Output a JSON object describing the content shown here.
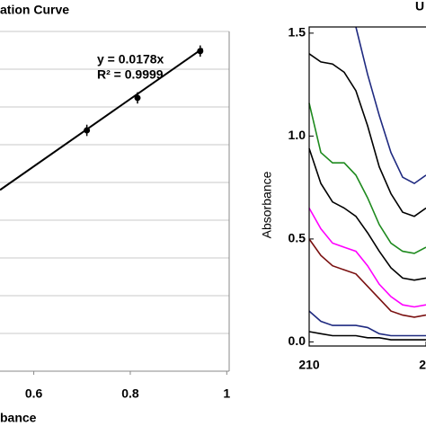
{
  "chart_data": [
    {
      "type": "scatter",
      "title": "ation Curve",
      "x_label": "bance",
      "x": [
        0.71,
        0.815,
        0.945
      ],
      "values": [
        6.38,
        7.24,
        8.48
      ],
      "errors": [
        0.15,
        0.15,
        0.15
      ],
      "trendline": {
        "x": [
          0.53,
          0.95
        ],
        "values": [
          4.8,
          8.55
        ]
      },
      "annotations": [
        "y = 0.0178x",
        "R² = 0.9999"
      ],
      "xlim": [
        0.53,
        1.005
      ],
      "xticks": [
        0.6,
        0.8,
        1
      ],
      "ylim": [
        0,
        9
      ],
      "ygrid": [
        1,
        2,
        3,
        4,
        5,
        6,
        7,
        8,
        9
      ],
      "color": "#000000",
      "grid": true
    },
    {
      "type": "line",
      "title": "U",
      "y_label": "Absorbance",
      "x": [
        210,
        211,
        212,
        213,
        214,
        215,
        216,
        217,
        218,
        219,
        220
      ],
      "xlim": [
        210,
        220
      ],
      "xticks": [
        210,
        {
          "value": 220,
          "label": "2"
        }
      ],
      "ylim": [
        -0.02,
        1.53
      ],
      "yticks": [
        {
          "value": 0,
          "label": "0.0"
        },
        {
          "value": 0.5,
          "label": "0.5"
        },
        {
          "value": 1,
          "label": "1.0"
        },
        {
          "value": 1.5,
          "label": "1.5"
        }
      ],
      "series": [
        {
          "color": "#1f2a80",
          "values": [
            null,
            null,
            null,
            null,
            1.53,
            1.3,
            1.1,
            0.92,
            0.8,
            0.77,
            0.81
          ]
        },
        {
          "color": "#000000",
          "values": [
            1.4,
            1.36,
            1.35,
            1.31,
            1.22,
            1.05,
            0.85,
            0.72,
            0.63,
            0.61,
            0.65
          ]
        },
        {
          "color": "#1e8a1e",
          "values": [
            1.16,
            0.92,
            0.87,
            0.87,
            0.81,
            0.7,
            0.57,
            0.48,
            0.44,
            0.43,
            0.46
          ]
        },
        {
          "color": "#000000",
          "values": [
            0.94,
            0.77,
            0.68,
            0.65,
            0.61,
            0.53,
            0.44,
            0.36,
            0.31,
            0.3,
            0.31
          ]
        },
        {
          "color": "#ff00ff",
          "values": [
            0.65,
            0.55,
            0.48,
            0.46,
            0.44,
            0.37,
            0.28,
            0.22,
            0.18,
            0.17,
            0.18
          ]
        },
        {
          "color": "#7a1010",
          "values": [
            0.5,
            0.42,
            0.37,
            0.35,
            0.33,
            0.27,
            0.21,
            0.15,
            0.13,
            0.12,
            0.13
          ]
        },
        {
          "color": "#1f2a80",
          "values": [
            0.15,
            0.1,
            0.08,
            0.08,
            0.08,
            0.07,
            0.04,
            0.03,
            0.03,
            0.03,
            0.03
          ]
        },
        {
          "color": "#000000",
          "values": [
            0.05,
            0.04,
            0.03,
            0.03,
            0.03,
            0.02,
            0.02,
            0.01,
            0.01,
            0.01,
            0.01
          ]
        }
      ]
    }
  ]
}
